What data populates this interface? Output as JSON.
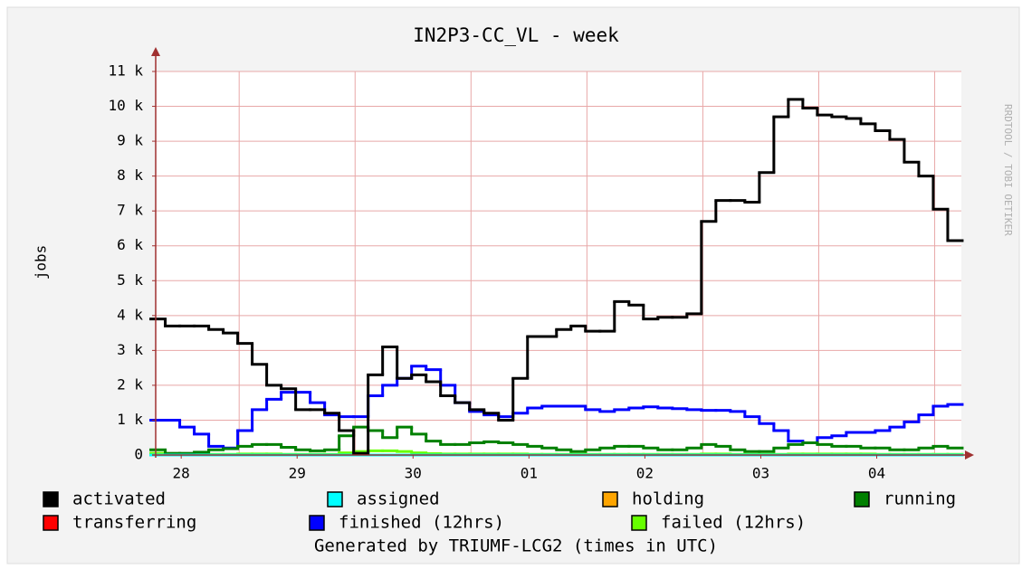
{
  "chart_data": {
    "type": "line",
    "step": true,
    "title": "IN2P3-CC_VL - week",
    "y_label": "jobs",
    "footer": "Generated by TRIUMF-LCG2 (times in UTC)",
    "watermark": "RRDTOOL / TOBI OETIKER",
    "x": [
      0.3,
      0.425,
      0.55,
      0.675,
      0.8,
      0.925,
      1.05,
      1.175,
      1.3,
      1.425,
      1.55,
      1.675,
      1.8,
      1.925,
      2.05,
      2.175,
      2.3,
      2.425,
      2.55,
      2.675,
      2.8,
      2.925,
      3.05,
      3.175,
      3.3,
      3.425,
      3.55,
      3.675,
      3.8,
      3.925,
      4.05,
      4.175,
      4.3,
      4.425,
      4.55,
      4.675,
      4.8,
      4.925,
      5.05,
      5.175,
      5.3,
      5.425,
      5.55,
      5.675,
      5.8,
      5.925,
      6.05,
      6.175,
      6.3,
      6.425,
      6.55,
      6.675,
      6.8,
      6.925,
      7.05,
      7.175
    ],
    "xlim": [
      0.28,
      7.23
    ],
    "xticks": [
      {
        "value": 0.5,
        "label": "28"
      },
      {
        "value": 1.5,
        "label": "29"
      },
      {
        "value": 2.5,
        "label": "30"
      },
      {
        "value": 3.5,
        "label": "01"
      },
      {
        "value": 4.5,
        "label": "02"
      },
      {
        "value": 5.5,
        "label": "03"
      },
      {
        "value": 6.5,
        "label": "04"
      }
    ],
    "x_major_grid": [
      1,
      2,
      3,
      4,
      5,
      6,
      7
    ],
    "ylim": [
      0,
      11000
    ],
    "yticks": [
      0,
      {
        "value": 1000,
        "label": "1 k"
      },
      {
        "value": 2000,
        "label": "2 k"
      },
      {
        "value": 3000,
        "label": "3 k"
      },
      {
        "value": 4000,
        "label": "4 k"
      },
      {
        "value": 5000,
        "label": "5 k"
      },
      {
        "value": 6000,
        "label": "6 k"
      },
      {
        "value": 7000,
        "label": "7 k"
      },
      {
        "value": 8000,
        "label": "8 k"
      },
      {
        "value": 9000,
        "label": "9 k"
      },
      {
        "value": 10000,
        "label": "10 k"
      },
      {
        "value": 11000,
        "label": "11 k"
      }
    ],
    "grid": true,
    "series": [
      {
        "name": "activated",
        "color": "#000000",
        "values": [
          3900,
          3700,
          3700,
          3700,
          3600,
          3500,
          3200,
          2600,
          2000,
          1900,
          1300,
          1300,
          1200,
          700,
          50,
          2300,
          3100,
          2200,
          2300,
          2100,
          1700,
          1500,
          1300,
          1200,
          1000,
          2200,
          3400,
          3400,
          3600,
          3700,
          3550,
          3550,
          4400,
          4300,
          3900,
          3950,
          3950,
          4050,
          6700,
          7300,
          7300,
          7250,
          8100,
          9700,
          10200,
          9950,
          9750,
          9700,
          9650,
          9500,
          9300,
          9050,
          8400,
          8000,
          7050,
          6150
        ]
      },
      {
        "name": "assigned",
        "color": "#00ffff",
        "values": [
          0,
          0,
          0,
          0,
          0,
          0,
          0,
          0,
          0,
          0,
          0,
          0,
          0,
          0,
          0,
          0,
          0,
          0,
          0,
          0,
          0,
          0,
          0,
          0,
          0,
          0,
          0,
          0,
          0,
          0,
          0,
          0,
          0,
          0,
          0,
          0,
          0,
          0,
          0,
          0,
          0,
          0,
          0,
          0,
          0,
          0,
          0,
          0,
          0,
          0,
          0,
          0,
          0,
          0,
          0,
          0
        ]
      },
      {
        "name": "holding",
        "color": "#ffa500",
        "values": [
          0,
          0,
          0,
          0,
          0,
          0,
          0,
          0,
          0,
          0,
          0,
          0,
          0,
          0,
          0,
          0,
          0,
          0,
          0,
          0,
          0,
          0,
          0,
          0,
          0,
          0,
          0,
          0,
          0,
          0,
          0,
          0,
          0,
          0,
          0,
          0,
          0,
          0,
          0,
          0,
          0,
          0,
          0,
          0,
          0,
          0,
          0,
          0,
          0,
          0,
          0,
          0,
          0,
          0,
          0,
          0
        ]
      },
      {
        "name": "running",
        "color": "#008000",
        "values": [
          150,
          50,
          50,
          80,
          150,
          180,
          250,
          300,
          300,
          220,
          150,
          120,
          150,
          550,
          800,
          700,
          500,
          800,
          600,
          400,
          300,
          300,
          350,
          380,
          350,
          300,
          250,
          200,
          150,
          100,
          150,
          200,
          250,
          250,
          200,
          150,
          150,
          200,
          300,
          250,
          150,
          100,
          100,
          200,
          300,
          350,
          300,
          250,
          250,
          200,
          200,
          150,
          150,
          200,
          250,
          200
        ]
      },
      {
        "name": "transferring",
        "color": "#ff0000",
        "values": [
          0,
          0,
          0,
          0,
          0,
          0,
          0,
          0,
          0,
          0,
          0,
          0,
          0,
          0,
          0,
          0,
          0,
          0,
          0,
          0,
          0,
          0,
          0,
          0,
          0,
          0,
          0,
          0,
          0,
          0,
          0,
          0,
          0,
          0,
          0,
          0,
          0,
          0,
          0,
          0,
          0,
          0,
          0,
          0,
          0,
          0,
          0,
          0,
          0,
          0,
          0,
          0,
          0,
          0,
          0,
          0
        ]
      },
      {
        "name": "finished (12hrs)",
        "color": "#0000ff",
        "values": [
          1000,
          1000,
          800,
          600,
          250,
          200,
          700,
          1300,
          1600,
          1800,
          1800,
          1500,
          1150,
          1100,
          1100,
          1700,
          2000,
          2200,
          2550,
          2450,
          2000,
          1500,
          1250,
          1150,
          1100,
          1200,
          1350,
          1400,
          1400,
          1400,
          1300,
          1250,
          1300,
          1350,
          1380,
          1350,
          1330,
          1300,
          1280,
          1280,
          1250,
          1100,
          900,
          700,
          400,
          350,
          500,
          550,
          650,
          650,
          700,
          800,
          950,
          1150,
          1400,
          1450
        ]
      },
      {
        "name": "failed (12hrs)",
        "color": "#66ff00",
        "values": [
          50,
          30,
          20,
          20,
          20,
          20,
          30,
          30,
          30,
          20,
          20,
          20,
          20,
          60,
          100,
          120,
          120,
          100,
          60,
          40,
          30,
          30,
          30,
          30,
          30,
          30,
          20,
          20,
          20,
          20,
          20,
          20,
          20,
          20,
          20,
          20,
          20,
          20,
          30,
          30,
          20,
          20,
          20,
          20,
          30,
          30,
          30,
          30,
          30,
          30,
          20,
          20,
          20,
          20,
          20,
          20
        ]
      }
    ]
  }
}
